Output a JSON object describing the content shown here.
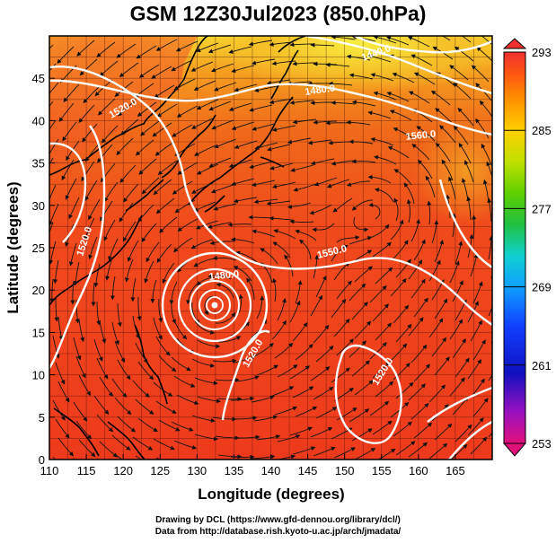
{
  "title": "GSM 12Z30Jul2023 (850.0hPa)",
  "axes": {
    "xlabel": "Longitude (degrees)",
    "ylabel": "Latitude  (degrees)",
    "x_ticks": [
      "110",
      "115",
      "120",
      "125",
      "130",
      "135",
      "140",
      "145",
      "150",
      "155",
      "160",
      "165"
    ],
    "y_ticks": [
      "0",
      "5",
      "10",
      "15",
      "20",
      "25",
      "30",
      "35",
      "40",
      "45"
    ],
    "xlim": [
      110,
      170
    ],
    "ylim": [
      0,
      50
    ]
  },
  "colorbar": {
    "labels": [
      "293",
      "285",
      "277",
      "269",
      "261",
      "253"
    ],
    "range": [
      253,
      293
    ],
    "colors": [
      "#e0107a",
      "#9a10c0",
      "#1010c0",
      "#1040ff",
      "#10a0ff",
      "#10d0d0",
      "#20c040",
      "#60d000",
      "#c0e000",
      "#ffd000",
      "#ff9000",
      "#ff5a10",
      "#f03030"
    ]
  },
  "contour_labels": [
    "1440.0",
    "1480.0",
    "1520.0",
    "1560.0",
    "1520.0",
    "1550.0",
    "1480.0",
    "1520.0",
    "1520.0"
  ],
  "colors": {
    "field_warm": "#f03c1e",
    "field_mid": "#f06a1a",
    "field_cool": "#f5b020",
    "field_cold": "#f6e83a",
    "contour": "#ffffff",
    "grid": "#2a0a0a",
    "coast": "#000000"
  },
  "credits": {
    "line1": "Drawing by DCL (https://www.gfd-dennou.org/library/dcl/)",
    "line2": "Data from http://database.rish.kyoto-u.ac.jp/arch/jmadata/"
  }
}
